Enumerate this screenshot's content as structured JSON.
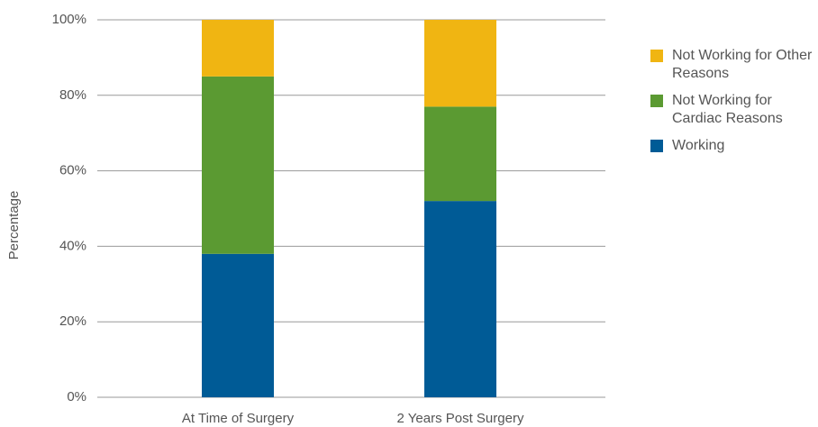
{
  "chart_data": {
    "type": "stacked_bar",
    "y_label": "Percentage",
    "categories": [
      "At Time of Surgery",
      "2 Years Post Surgery"
    ],
    "series": [
      {
        "name": "Working",
        "color": "#005b96",
        "values": [
          38,
          52
        ]
      },
      {
        "name": "Not Working for Cardiac Reasons",
        "color": "#5b9a32",
        "values": [
          47,
          25
        ]
      },
      {
        "name": "Not Working for Other Reasons",
        "color": "#f0b512",
        "values": [
          15,
          23
        ]
      }
    ],
    "ylim": [
      0,
      100
    ],
    "yticks": [
      {
        "value": 0,
        "label": "0%"
      },
      {
        "value": 20,
        "label": "20%"
      },
      {
        "value": 40,
        "label": "40%"
      },
      {
        "value": 60,
        "label": "60%"
      },
      {
        "value": 80,
        "label": "80%"
      },
      {
        "value": 100,
        "label": "100%"
      }
    ],
    "grid": true,
    "legend": "right"
  }
}
